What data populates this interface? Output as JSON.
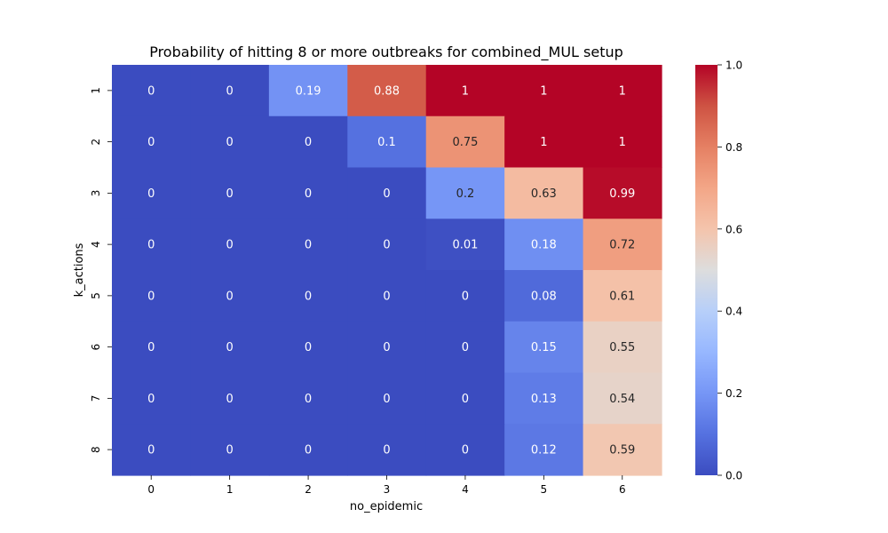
{
  "chart_data": {
    "type": "heatmap",
    "title": "Probability of hitting 8 or more outbreaks for combined_MUL setup",
    "xlabel": "no_epidemic",
    "ylabel": "k_actions",
    "x_categories": [
      "0",
      "1",
      "2",
      "3",
      "4",
      "5",
      "6"
    ],
    "y_categories": [
      "1",
      "2",
      "3",
      "4",
      "5",
      "6",
      "7",
      "8"
    ],
    "values": [
      [
        0,
        0,
        0.19,
        0.88,
        1,
        1,
        1
      ],
      [
        0,
        0,
        0,
        0.1,
        0.75,
        1,
        1
      ],
      [
        0,
        0,
        0,
        0,
        0.2,
        0.63,
        0.99
      ],
      [
        0,
        0,
        0,
        0,
        0.01,
        0.18,
        0.72
      ],
      [
        0,
        0,
        0,
        0,
        0,
        0.08,
        0.61
      ],
      [
        0,
        0,
        0,
        0,
        0,
        0.15,
        0.55
      ],
      [
        0,
        0,
        0,
        0,
        0,
        0.13,
        0.54
      ],
      [
        0,
        0,
        0,
        0,
        0,
        0.12,
        0.59
      ]
    ],
    "colormap": "coolwarm",
    "colorbar": {
      "range": [
        0.0,
        1.0
      ],
      "ticks": [
        "0.0",
        "0.2",
        "0.4",
        "0.6",
        "0.8",
        "1.0"
      ]
    },
    "grid": false
  }
}
